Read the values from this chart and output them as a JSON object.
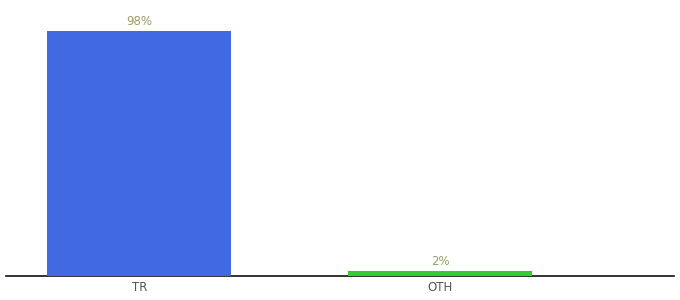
{
  "categories": [
    "TR",
    "OTH"
  ],
  "values": [
    98,
    2
  ],
  "bar_colors": [
    "#4169e1",
    "#32cd32"
  ],
  "label_colors": [
    "#9b9b6a",
    "#9b9b6a"
  ],
  "labels": [
    "98%",
    "2%"
  ],
  "ylim": [
    0,
    108
  ],
  "xlim": [
    -0.1,
    1.9
  ],
  "background_color": "#ffffff",
  "axis_line_color": "#111111",
  "tick_label_color": "#555555",
  "tick_label_fontsize": 8.5,
  "label_fontsize": 8.5,
  "bar_width": 0.55,
  "x_positions": [
    0.3,
    1.2
  ]
}
